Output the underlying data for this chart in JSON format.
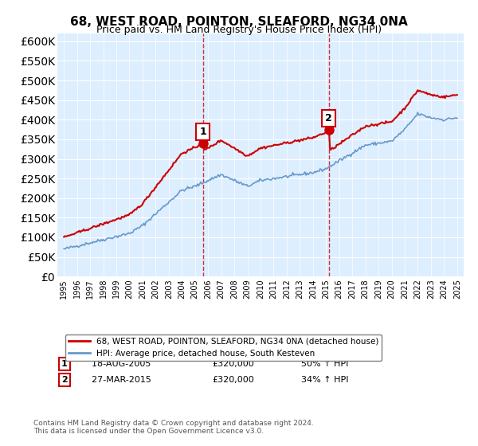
{
  "title": "68, WEST ROAD, POINTON, SLEAFORD, NG34 0NA",
  "subtitle": "Price paid vs. HM Land Registry's House Price Index (HPI)",
  "legend_line1": "68, WEST ROAD, POINTON, SLEAFORD, NG34 0NA (detached house)",
  "legend_line2": "HPI: Average price, detached house, South Kesteven",
  "transaction1_label": "1",
  "transaction1_date": "18-AUG-2005",
  "transaction1_price": "£320,000",
  "transaction1_hpi": "50% ↑ HPI",
  "transaction1_year": 2005.625,
  "transaction2_label": "2",
  "transaction2_date": "27-MAR-2015",
  "transaction2_price": "£320,000",
  "transaction2_hpi": "34% ↑ HPI",
  "transaction2_year": 2015.23,
  "footer": "Contains HM Land Registry data © Crown copyright and database right 2024.\nThis data is licensed under the Open Government Licence v3.0.",
  "red_color": "#cc0000",
  "blue_color": "#6699cc",
  "background_plot": "#ddeeff",
  "vline_color": "#cc0000",
  "ylim": [
    0,
    620000
  ],
  "xlim_start": 1994.5,
  "xlim_end": 2025.5
}
